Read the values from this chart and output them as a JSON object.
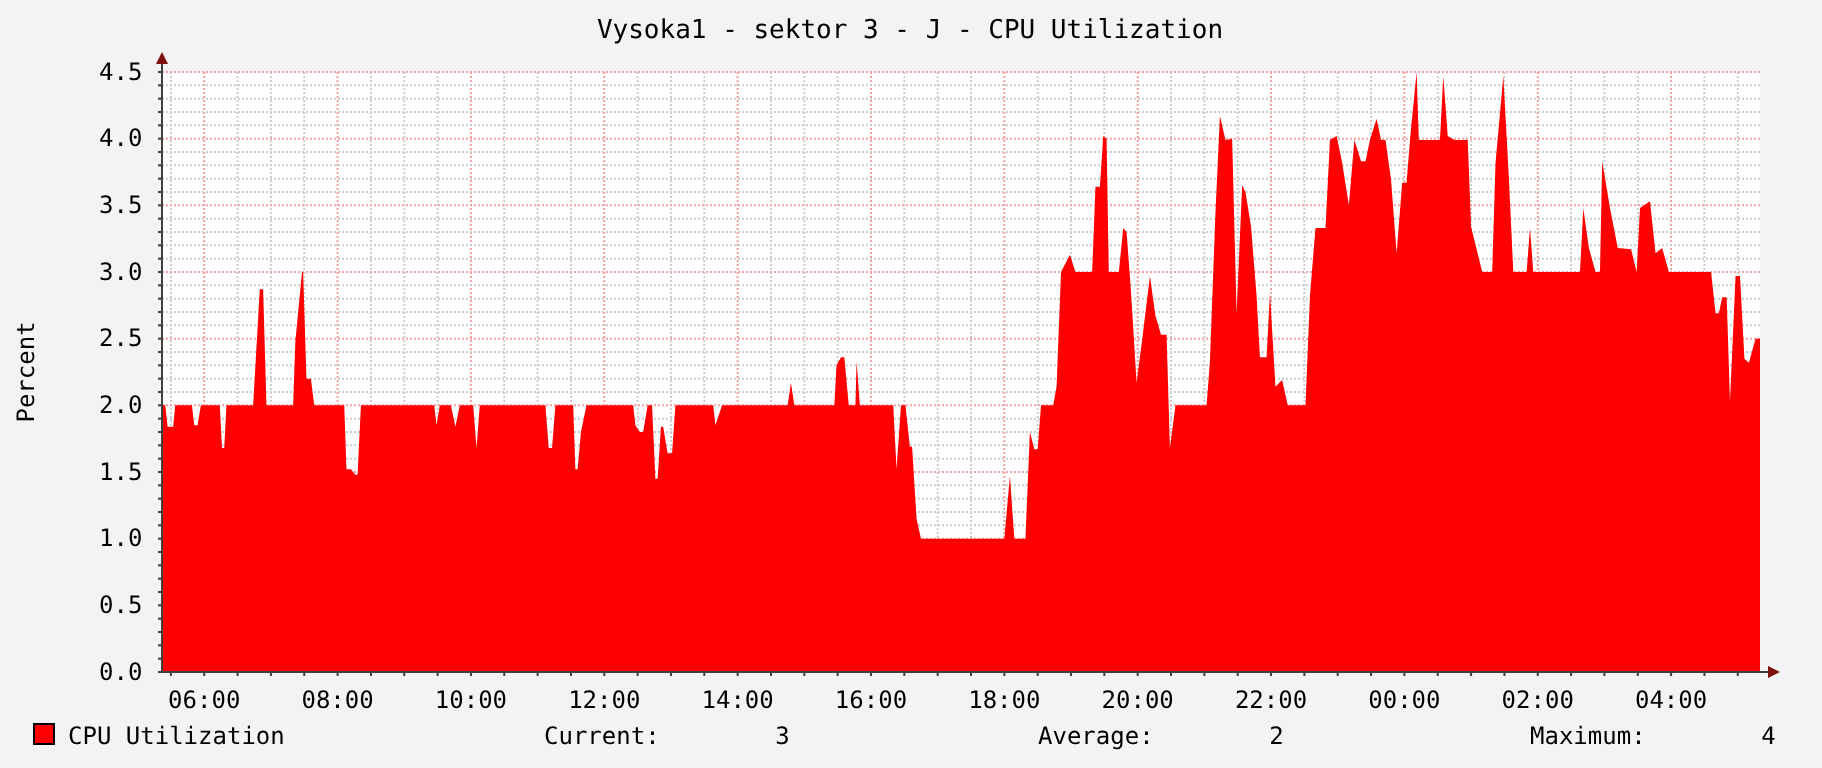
{
  "chart_data": {
    "type": "area",
    "title": "Vysoka1 - sektor 3 - J - CPU Utilization",
    "ylabel": "Percent",
    "series": [
      {
        "name": "CPU Utilization",
        "color": "#ff0000",
        "x": [
          "2000-01-01T05:22",
          "2000-01-01T05:25",
          "2000-01-01T05:27",
          "2000-01-01T05:32",
          "2000-01-01T05:34",
          "2000-01-01T05:49",
          "2000-01-01T05:51",
          "2000-01-01T05:54",
          "2000-01-01T05:57",
          "2000-01-01T06:14",
          "2000-01-01T06:16",
          "2000-01-01T06:18",
          "2000-01-01T06:20",
          "2000-01-01T06:44",
          "2000-01-01T06:46",
          "2000-01-01T06:50",
          "2000-01-01T06:53",
          "2000-01-01T06:56",
          "2000-01-01T07:20",
          "2000-01-01T07:22",
          "2000-01-01T07:28",
          "2000-01-01T07:29",
          "2000-01-01T07:32",
          "2000-01-01T07:36",
          "2000-01-01T07:39",
          "2000-01-01T08:06",
          "2000-01-01T08:08",
          "2000-01-01T08:12",
          "2000-01-01T08:16",
          "2000-01-01T08:18",
          "2000-01-01T08:21",
          "2000-01-01T09:27",
          "2000-01-01T09:29",
          "2000-01-01T09:32",
          "2000-01-01T09:42",
          "2000-01-01T09:46",
          "2000-01-01T09:50",
          "2000-01-01T10:02",
          "2000-01-01T10:05",
          "2000-01-01T10:08",
          "2000-01-01T11:07",
          "2000-01-01T11:10",
          "2000-01-01T11:13",
          "2000-01-01T11:16",
          "2000-01-01T11:32",
          "2000-01-01T11:34",
          "2000-01-01T11:36",
          "2000-01-01T11:39",
          "2000-01-01T11:44",
          "2000-01-01T12:26",
          "2000-01-01T12:28",
          "2000-01-01T12:32",
          "2000-01-01T12:35",
          "2000-01-01T12:39",
          "2000-01-01T12:43",
          "2000-01-01T12:46",
          "2000-01-01T12:48",
          "2000-01-01T12:51",
          "2000-01-01T12:53",
          "2000-01-01T12:57",
          "2000-01-01T13:01",
          "2000-01-01T13:04",
          "2000-01-01T13:38",
          "2000-01-01T13:40",
          "2000-01-01T13:46",
          "2000-01-01T14:45",
          "2000-01-01T14:48",
          "2000-01-01T14:51",
          "2000-01-01T15:27",
          "2000-01-01T15:29",
          "2000-01-01T15:33",
          "2000-01-01T15:36",
          "2000-01-01T15:40",
          "2000-01-01T15:46",
          "2000-01-01T15:47",
          "2000-01-01T15:50",
          "2000-01-01T16:20",
          "2000-01-01T16:23",
          "2000-01-01T16:27",
          "2000-01-01T16:31",
          "2000-01-01T16:35",
          "2000-01-01T16:37",
          "2000-01-01T16:41",
          "2000-01-01T16:45",
          "2000-01-01T18:00",
          "2000-01-01T18:05",
          "2000-01-01T18:09",
          "2000-01-01T18:19",
          "2000-01-01T18:23",
          "2000-01-01T18:27",
          "2000-01-01T18:30",
          "2000-01-01T18:33",
          "2000-01-01T18:44",
          "2000-01-01T18:47",
          "2000-01-01T18:51",
          "2000-01-01T18:59",
          "2000-01-01T19:04",
          "2000-01-01T19:19",
          "2000-01-01T19:22",
          "2000-01-01T19:26",
          "2000-01-01T19:29",
          "2000-01-01T19:32",
          "2000-01-01T19:34",
          "2000-01-01T19:43",
          "2000-01-01T19:47",
          "2000-01-01T19:50",
          "2000-01-01T19:54",
          "2000-01-01T19:59",
          "2000-01-01T20:04",
          "2000-01-01T20:11",
          "2000-01-01T20:16",
          "2000-01-01T20:21",
          "2000-01-01T20:26",
          "2000-01-01T20:29",
          "2000-01-01T20:34",
          "2000-01-01T21:02",
          "2000-01-01T21:05",
          "2000-01-01T21:10",
          "2000-01-01T21:14",
          "2000-01-01T21:19",
          "2000-01-01T21:25",
          "2000-01-01T21:29",
          "2000-01-01T21:34",
          "2000-01-01T21:37",
          "2000-01-01T21:42",
          "2000-01-01T21:47",
          "2000-01-01T21:50",
          "2000-01-01T21:56",
          "2000-01-01T21:59",
          "2000-01-01T22:04",
          "2000-01-01T22:10",
          "2000-01-01T22:15",
          "2000-01-01T22:31",
          "2000-01-01T22:35",
          "2000-01-01T22:40",
          "2000-01-01T22:49",
          "2000-01-01T22:53",
          "2000-01-01T22:59",
          "2000-01-01T23:04",
          "2000-01-01T23:10",
          "2000-01-01T23:15",
          "2000-01-01T23:21",
          "2000-01-01T23:25",
          "2000-01-01T23:29",
          "2000-01-01T23:35",
          "2000-01-01T23:39",
          "2000-01-01T23:43",
          "2000-01-01T23:48",
          "2000-01-01T23:53",
          "2000-01-01T23:58",
          "2000-01-02T00:02",
          "2000-01-02T00:05",
          "2000-01-02T00:11",
          "2000-01-02T00:13",
          "2000-01-02T00:32",
          "2000-01-02T00:35",
          "2000-01-02T00:39",
          "2000-01-02T00:45",
          "2000-01-02T00:57",
          "2000-01-02T01:00",
          "2000-01-02T01:05",
          "2000-01-02T01:10",
          "2000-01-02T01:19",
          "2000-01-02T01:22",
          "2000-01-02T01:29",
          "2000-01-02T01:34",
          "2000-01-02T01:38",
          "2000-01-02T01:50",
          "2000-01-02T01:53",
          "2000-01-02T01:56",
          "2000-01-02T02:38",
          "2000-01-02T02:41",
          "2000-01-02T02:46",
          "2000-01-02T02:52",
          "2000-01-02T02:56",
          "2000-01-02T02:58",
          "2000-01-02T03:05",
          "2000-01-02T03:12",
          "2000-01-02T03:24",
          "2000-01-02T03:29",
          "2000-01-02T03:32",
          "2000-01-02T03:41",
          "2000-01-02T03:46",
          "2000-01-02T03:52",
          "2000-01-02T03:58",
          "2000-01-02T04:36",
          "2000-01-02T04:40",
          "2000-01-02T04:43",
          "2000-01-02T04:46",
          "2000-01-02T04:50",
          "2000-01-02T04:53",
          "2000-01-02T04:58",
          "2000-01-02T05:02",
          "2000-01-02T05:06",
          "2000-01-02T05:10",
          "2000-01-02T05:16",
          "2000-01-02T05:20"
        ],
        "values": [
          2.0,
          2.0,
          1.84,
          1.84,
          2.0,
          2.0,
          1.85,
          1.85,
          2.0,
          2.0,
          1.68,
          1.68,
          2.0,
          2.0,
          2.29,
          2.87,
          2.87,
          2.0,
          2.0,
          2.48,
          3.0,
          3.0,
          2.2,
          2.2,
          2.0,
          2.0,
          1.52,
          1.52,
          1.48,
          1.48,
          2.0,
          2.0,
          1.85,
          2.0,
          2.0,
          1.84,
          2.0,
          2.0,
          1.68,
          2.0,
          2.0,
          1.68,
          1.68,
          2.0,
          2.0,
          1.52,
          1.52,
          1.8,
          2.0,
          2.0,
          1.85,
          1.8,
          1.8,
          2.0,
          2.0,
          1.45,
          1.45,
          1.84,
          1.84,
          1.64,
          1.64,
          2.0,
          2.0,
          1.85,
          2.0,
          2.0,
          2.17,
          2.0,
          2.0,
          2.3,
          2.36,
          2.36,
          2.0,
          2.0,
          2.33,
          2.0,
          2.0,
          1.52,
          2.0,
          2.0,
          1.69,
          1.69,
          1.15,
          1.0,
          1.0,
          1.47,
          1.0,
          1.0,
          1.8,
          1.67,
          1.67,
          2.0,
          2.0,
          2.14,
          3.0,
          3.13,
          3.0,
          3.0,
          3.64,
          3.64,
          4.02,
          4.0,
          3.0,
          3.0,
          3.33,
          3.3,
          2.85,
          2.17,
          2.49,
          2.97,
          2.67,
          2.53,
          2.53,
          1.68,
          2.0,
          2.0,
          2.33,
          3.45,
          4.17,
          3.99,
          4.0,
          2.69,
          3.65,
          3.6,
          3.34,
          2.82,
          2.36,
          2.36,
          2.84,
          2.14,
          2.19,
          2.0,
          2.0,
          2.82,
          3.33,
          3.33,
          3.99,
          4.02,
          3.82,
          3.5,
          3.99,
          3.83,
          3.83,
          3.99,
          4.15,
          3.99,
          3.99,
          3.69,
          3.14,
          3.67,
          3.67,
          3.99,
          4.5,
          3.99,
          3.99,
          4.47,
          4.02,
          3.99,
          3.99,
          3.34,
          3.17,
          3.0,
          3.0,
          3.82,
          4.47,
          3.71,
          3.0,
          3.0,
          3.33,
          3.0,
          3.0,
          3.48,
          3.18,
          3.0,
          3.0,
          3.83,
          3.48,
          3.18,
          3.17,
          3.0,
          3.48,
          3.53,
          3.14,
          3.18,
          3.0,
          3.0,
          2.69,
          2.69,
          2.81,
          2.81,
          2.03,
          2.97,
          2.97,
          2.35,
          2.32,
          2.5,
          2.5
        ]
      }
    ],
    "xlim": [
      "2000-01-01T05:22",
      "2000-01-02T05:20"
    ],
    "xticks": [
      {
        "value": "2000-01-01T05:30",
        "label": null
      },
      {
        "value": "2000-01-01T06:00",
        "label": "06:00"
      },
      {
        "value": "2000-01-01T06:30",
        "label": null
      },
      {
        "value": "2000-01-01T07:00",
        "label": null
      },
      {
        "value": "2000-01-01T07:30",
        "label": null
      },
      {
        "value": "2000-01-01T08:00",
        "label": "08:00"
      },
      {
        "value": "2000-01-01T08:30",
        "label": null
      },
      {
        "value": "2000-01-01T09:00",
        "label": null
      },
      {
        "value": "2000-01-01T09:30",
        "label": null
      },
      {
        "value": "2000-01-01T10:00",
        "label": "10:00"
      },
      {
        "value": "2000-01-01T10:30",
        "label": null
      },
      {
        "value": "2000-01-01T11:00",
        "label": null
      },
      {
        "value": "2000-01-01T11:30",
        "label": null
      },
      {
        "value": "2000-01-01T12:00",
        "label": "12:00"
      },
      {
        "value": "2000-01-01T12:30",
        "label": null
      },
      {
        "value": "2000-01-01T13:00",
        "label": null
      },
      {
        "value": "2000-01-01T13:30",
        "label": null
      },
      {
        "value": "2000-01-01T14:00",
        "label": "14:00"
      },
      {
        "value": "2000-01-01T14:30",
        "label": null
      },
      {
        "value": "2000-01-01T15:00",
        "label": null
      },
      {
        "value": "2000-01-01T15:30",
        "label": null
      },
      {
        "value": "2000-01-01T16:00",
        "label": "16:00"
      },
      {
        "value": "2000-01-01T16:30",
        "label": null
      },
      {
        "value": "2000-01-01T17:00",
        "label": null
      },
      {
        "value": "2000-01-01T17:30",
        "label": null
      },
      {
        "value": "2000-01-01T18:00",
        "label": "18:00"
      },
      {
        "value": "2000-01-01T18:30",
        "label": null
      },
      {
        "value": "2000-01-01T19:00",
        "label": null
      },
      {
        "value": "2000-01-01T19:30",
        "label": null
      },
      {
        "value": "2000-01-01T20:00",
        "label": "20:00"
      },
      {
        "value": "2000-01-01T20:30",
        "label": null
      },
      {
        "value": "2000-01-01T21:00",
        "label": null
      },
      {
        "value": "2000-01-01T21:30",
        "label": null
      },
      {
        "value": "2000-01-01T22:00",
        "label": "22:00"
      },
      {
        "value": "2000-01-01T22:30",
        "label": null
      },
      {
        "value": "2000-01-01T23:00",
        "label": null
      },
      {
        "value": "2000-01-01T23:30",
        "label": null
      },
      {
        "value": "2000-01-02T00:00",
        "label": "00:00"
      },
      {
        "value": "2000-01-02T00:30",
        "label": null
      },
      {
        "value": "2000-01-02T01:00",
        "label": null
      },
      {
        "value": "2000-01-02T01:30",
        "label": null
      },
      {
        "value": "2000-01-02T02:00",
        "label": "02:00"
      },
      {
        "value": "2000-01-02T02:30",
        "label": null
      },
      {
        "value": "2000-01-02T03:00",
        "label": null
      },
      {
        "value": "2000-01-02T03:30",
        "label": null
      },
      {
        "value": "2000-01-02T04:00",
        "label": "04:00"
      },
      {
        "value": "2000-01-02T04:30",
        "label": null
      },
      {
        "value": "2000-01-02T05:00",
        "label": null
      }
    ],
    "ylim": [
      0,
      4.5
    ],
    "yticks": [
      {
        "value": 0,
        "label": "0.0"
      },
      {
        "value": 0.1,
        "label": null
      },
      {
        "value": 0.2,
        "label": null
      },
      {
        "value": 0.3,
        "label": null
      },
      {
        "value": 0.4,
        "label": null
      },
      {
        "value": 0.5,
        "label": "0.5"
      },
      {
        "value": 0.6,
        "label": null
      },
      {
        "value": 0.7,
        "label": null
      },
      {
        "value": 0.8,
        "label": null
      },
      {
        "value": 0.9,
        "label": null
      },
      {
        "value": 1,
        "label": "1.0"
      },
      {
        "value": 1.1,
        "label": null
      },
      {
        "value": 1.2,
        "label": null
      },
      {
        "value": 1.3,
        "label": null
      },
      {
        "value": 1.4,
        "label": null
      },
      {
        "value": 1.5,
        "label": "1.5"
      },
      {
        "value": 1.6,
        "label": null
      },
      {
        "value": 1.7,
        "label": null
      },
      {
        "value": 1.8,
        "label": null
      },
      {
        "value": 1.9,
        "label": null
      },
      {
        "value": 2,
        "label": "2.0"
      },
      {
        "value": 2.1,
        "label": null
      },
      {
        "value": 2.2,
        "label": null
      },
      {
        "value": 2.3,
        "label": null
      },
      {
        "value": 2.4,
        "label": null
      },
      {
        "value": 2.5,
        "label": "2.5"
      },
      {
        "value": 2.6,
        "label": null
      },
      {
        "value": 2.7,
        "label": null
      },
      {
        "value": 2.8,
        "label": null
      },
      {
        "value": 2.9,
        "label": null
      },
      {
        "value": 3,
        "label": "3.0"
      },
      {
        "value": 3.1,
        "label": null
      },
      {
        "value": 3.2,
        "label": null
      },
      {
        "value": 3.3,
        "label": null
      },
      {
        "value": 3.4,
        "label": null
      },
      {
        "value": 3.5,
        "label": "3.5"
      },
      {
        "value": 3.6,
        "label": null
      },
      {
        "value": 3.7,
        "label": null
      },
      {
        "value": 3.8,
        "label": null
      },
      {
        "value": 3.9,
        "label": null
      },
      {
        "value": 4,
        "label": "4.0"
      },
      {
        "value": 4.1,
        "label": null
      },
      {
        "value": 4.2,
        "label": null
      },
      {
        "value": 4.3,
        "label": null
      },
      {
        "value": 4.4,
        "label": null
      },
      {
        "value": 4.5,
        "label": "4.5"
      }
    ],
    "grid": true,
    "legend": "bottom left",
    "annotations": [
      "Current:        3",
      "Average:        2",
      "Maximum:        4"
    ]
  }
}
